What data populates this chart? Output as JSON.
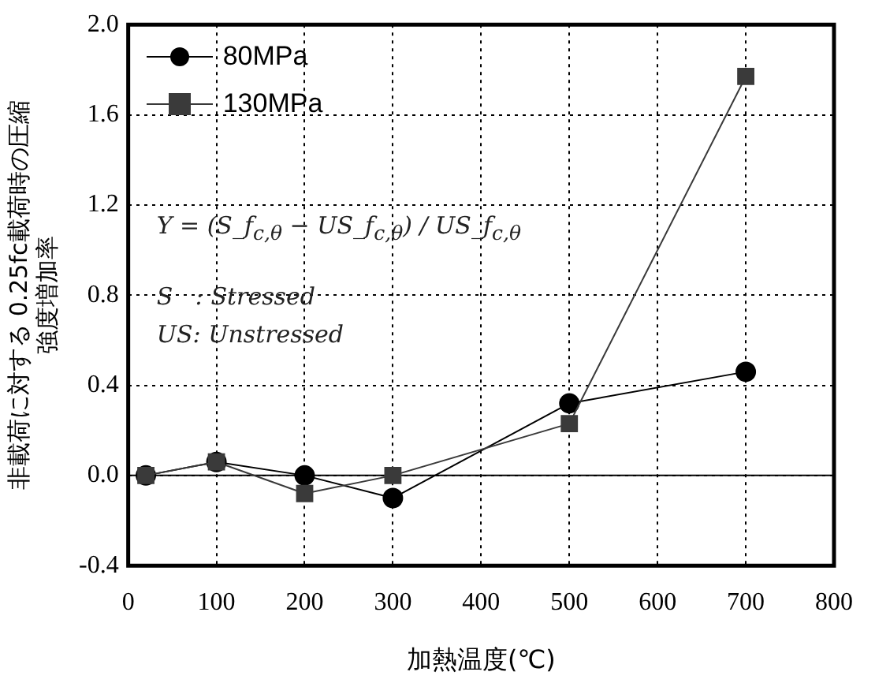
{
  "chart_data": {
    "type": "line",
    "xlabel": "加熱温度(℃)",
    "ylabel": "非載荷に対する 0.25fc載荷時の圧縮強度増加率",
    "x": [
      20,
      100,
      200,
      300,
      500,
      700
    ],
    "series": [
      {
        "name": "80MPa",
        "color": "#000000",
        "marker": "circle",
        "values": [
          0.0,
          0.06,
          0.0,
          -0.1,
          0.32,
          0.46
        ]
      },
      {
        "name": "130MPa",
        "color": "#3a3a3a",
        "marker": "square",
        "values": [
          0.0,
          0.06,
          -0.08,
          0.0,
          0.23,
          1.77
        ]
      }
    ],
    "xlim": [
      0,
      800
    ],
    "xticks": [
      0,
      100,
      200,
      300,
      400,
      500,
      600,
      700,
      800
    ],
    "ylim": [
      -0.4,
      2.0
    ],
    "yticks": [
      -0.4,
      {
        "value": 0,
        "label": "0.0"
      },
      0.4,
      0.8,
      1.2,
      1.6,
      {
        "value": 2,
        "label": "2.0"
      }
    ],
    "ref_lines": [
      {
        "axis": "y",
        "value": 0,
        "color": "#000000"
      }
    ],
    "annotations": [
      "Y = (S_f$_{c,θ}$ − US_f$_{c,θ}$) / US_f$_{c,θ}$",
      "S   : Stressed",
      "US: Unstressed"
    ],
    "grid": true,
    "legend": "top left",
    "line_style": "solid"
  }
}
